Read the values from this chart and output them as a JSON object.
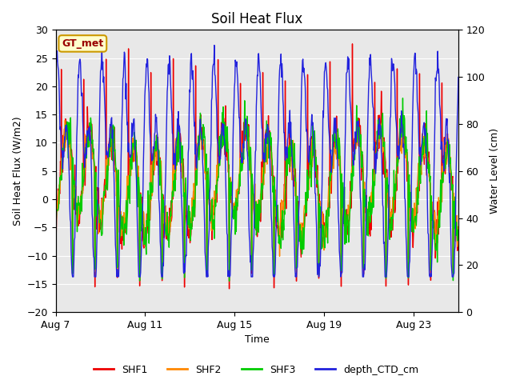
{
  "title": "Soil Heat Flux",
  "xlabel": "Time",
  "ylabel_left": "Soil Heat Flux (W/m2)",
  "ylabel_right": "Water Level (cm)",
  "ylim_left": [
    -20,
    30
  ],
  "ylim_right": [
    0,
    120
  ],
  "yticks_left": [
    -20,
    -15,
    -10,
    -5,
    0,
    5,
    10,
    15,
    20,
    25,
    30
  ],
  "yticks_right": [
    0,
    20,
    40,
    60,
    80,
    100,
    120
  ],
  "xtick_labels": [
    "Aug 7",
    "Aug 11",
    "Aug 15",
    "Aug 19",
    "Aug 23"
  ],
  "xtick_positions": [
    0,
    4,
    8,
    12,
    16
  ],
  "xlim": [
    0,
    18
  ],
  "colors": {
    "SHF1": "#ee0000",
    "SHF2": "#ff8800",
    "SHF3": "#00cc00",
    "depth_CTD_cm": "#2222dd"
  },
  "annotation_text": "GT_met",
  "annotation_bg": "#ffffcc",
  "annotation_border": "#cc9900",
  "fig_bg": "#ffffff",
  "plot_bg": "#e8e8e8",
  "grid_color": "#ffffff",
  "n_days": 18,
  "n_per_day": 48,
  "title_fontsize": 12,
  "label_fontsize": 9,
  "tick_fontsize": 9,
  "legend_fontsize": 9,
  "linewidth": 1.0
}
